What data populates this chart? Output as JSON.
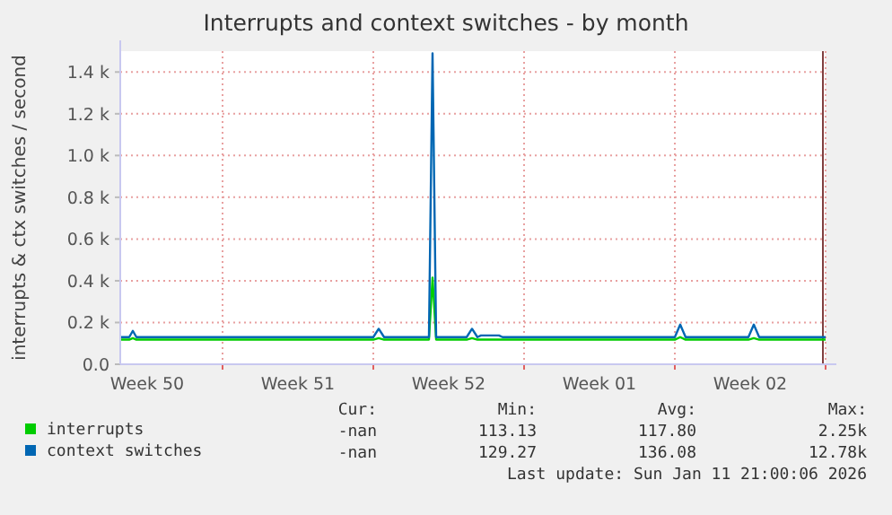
{
  "chart_data": {
    "type": "line",
    "title": "Interrupts and context switches - by month",
    "ylabel": "interrupts & ctx switches / second",
    "x": [
      "2025-12-10T06:00",
      "2025-12-10T16:00",
      "2025-12-10T20:00",
      "2025-12-11T00:00",
      "2025-12-22T00:00",
      "2025-12-22T06:00",
      "2025-12-22T12:00",
      "2025-12-24T14:00",
      "2025-12-24T18:00",
      "2025-12-24T22:00",
      "2025-12-26T08:00",
      "2025-12-26T14:00",
      "2025-12-26T20:00",
      "2025-12-27T00:00",
      "2025-12-27T20:00",
      "2025-12-28T00:00",
      "2026-01-05T00:00",
      "2026-01-05T06:00",
      "2026-01-05T12:00",
      "2026-01-08T10:00",
      "2026-01-08T16:00",
      "2026-01-08T22:00",
      "2026-01-12T00:00"
    ],
    "series": [
      {
        "name": "interrupts",
        "color": "#00cc00",
        "values": [
          118,
          118,
          125,
          118,
          118,
          125,
          118,
          118,
          415,
          118,
          118,
          125,
          118,
          118,
          118,
          118,
          118,
          130,
          118,
          118,
          125,
          118,
          118
        ]
      },
      {
        "name": "context switches",
        "color": "#0066b3",
        "values": [
          130,
          130,
          160,
          130,
          130,
          170,
          130,
          130,
          1490,
          130,
          130,
          170,
          130,
          138,
          138,
          130,
          130,
          190,
          130,
          130,
          190,
          130,
          130
        ]
      }
    ],
    "xlim": [
      "2025-12-10T06:00",
      "2026-01-12T00:00"
    ],
    "xticks": [
      {
        "value": "2025-12-11T12:00",
        "label": "Week 50"
      },
      {
        "value": "2025-12-15T00:00",
        "label": null
      },
      {
        "value": "2025-12-18T12:00",
        "label": "Week 51"
      },
      {
        "value": "2025-12-22T00:00",
        "label": null
      },
      {
        "value": "2025-12-25T12:00",
        "label": "Week 52"
      },
      {
        "value": "2025-12-29T00:00",
        "label": null
      },
      {
        "value": "2026-01-01T12:00",
        "label": "Week 01"
      },
      {
        "value": "2026-01-05T00:00",
        "label": null
      },
      {
        "value": "2026-01-08T12:00",
        "label": "Week 02"
      },
      {
        "value": "2026-01-12T00:00",
        "label": null
      }
    ],
    "ylim": [
      0,
      1500
    ],
    "yticks": [
      {
        "value": 0,
        "label": "0.0"
      },
      {
        "value": 200,
        "label": "0.2 k"
      },
      {
        "value": 400,
        "label": "0.4 k"
      },
      {
        "value": 600,
        "label": "0.6 k"
      },
      {
        "value": 800,
        "label": "0.8 k"
      },
      {
        "value": 1000,
        "label": "1.0 k"
      },
      {
        "value": 1200,
        "label": "1.2 k"
      },
      {
        "value": 1400,
        "label": "1.4 k"
      }
    ],
    "grid": true,
    "legend": "bottom",
    "ref_lines": [
      {
        "axis": "x",
        "value": "2026-01-11T21:00",
        "color": "#804040"
      }
    ],
    "annotations": [
      "Cur:",
      "Min:",
      "Avg:",
      "Max:",
      "-nan",
      "113.13",
      "117.80",
      "2.25k",
      "-nan",
      "129.27",
      "136.08",
      "12.78k",
      "Last update: Sun Jan 11 21:00:06 2026"
    ]
  }
}
